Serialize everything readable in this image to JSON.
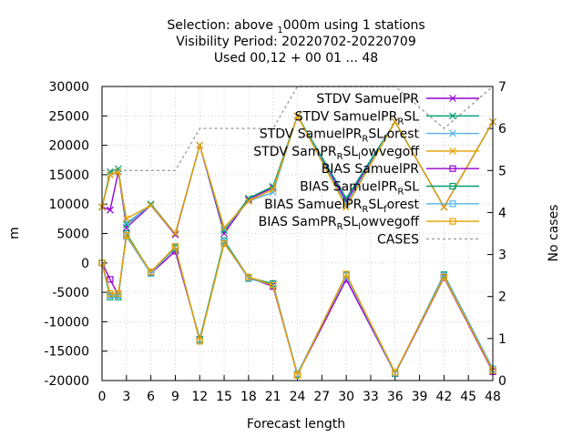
{
  "chart_data": {
    "type": "line",
    "title": [
      {
        "parts": [
          {
            "t": "Selection: above "
          },
          {
            "t": "1",
            "sub": true
          },
          {
            "t": "000m using     1 stations"
          }
        ]
      },
      {
        "parts": [
          {
            "t": "Visibility   Period: 20220702-20220709"
          }
        ]
      },
      {
        "parts": [
          {
            "t": "Used  00,12 + 00 01 ... 48"
          }
        ]
      }
    ],
    "xlabel": "Forecast length",
    "ylabel": "m",
    "y2label": "No cases",
    "xlim": [
      0,
      48
    ],
    "ylim": [
      -20000,
      30000
    ],
    "y2lim": [
      0,
      7
    ],
    "xticks": [
      "0",
      "3",
      "6",
      "9",
      "12",
      "15",
      "18",
      "21",
      "24",
      "27",
      "30",
      "33",
      "36",
      "39",
      "42",
      "45",
      "48"
    ],
    "yticks": [
      "-20000",
      "-15000",
      "-10000",
      "-5000",
      "0",
      "5000",
      "10000",
      "15000",
      "20000",
      "25000",
      "30000"
    ],
    "y2ticks": [
      "0",
      "1",
      "2",
      "3",
      "4",
      "5",
      "6",
      "7"
    ],
    "grid": true,
    "legend_position": "top-right",
    "x": [
      0,
      1,
      2,
      3,
      6,
      9,
      12,
      15,
      18,
      21,
      24,
      30,
      36,
      42,
      48
    ],
    "series": [
      {
        "label_parts": [
          {
            "t": "STDV SamuelPR"
          }
        ],
        "color": "#9400d3",
        "marker": "x",
        "axis": "y",
        "values": [
          9500,
          9000,
          15500,
          6000,
          9800,
          4800,
          20000,
          5000,
          10800,
          12800,
          25000,
          10500,
          24000,
          9500,
          24000
        ]
      },
      {
        "label_parts": [
          {
            "t": "STDV SamuelPR"
          },
          {
            "t": "R",
            "sub": true
          },
          {
            "t": "SL"
          }
        ],
        "color": "#009e73",
        "marker": "x",
        "axis": "y",
        "values": [
          9500,
          15500,
          16000,
          6500,
          10000,
          5000,
          20000,
          5500,
          11000,
          13000,
          25000,
          11000,
          24000,
          9500,
          24000
        ]
      },
      {
        "label_parts": [
          {
            "t": "STDV SamuelPR"
          },
          {
            "t": "R",
            "sub": true
          },
          {
            "t": "SL"
          },
          {
            "t": "f",
            "sub": true
          },
          {
            "t": "orest"
          }
        ],
        "color": "#56b4e9",
        "marker": "x",
        "axis": "y",
        "values": [
          9500,
          15000,
          15500,
          6800,
          9800,
          5000,
          20000,
          5800,
          10500,
          12000,
          25000,
          10000,
          24000,
          9500,
          24000
        ]
      },
      {
        "label_parts": [
          {
            "t": "STDV SamPR"
          },
          {
            "t": "R",
            "sub": true
          },
          {
            "t": "SL"
          },
          {
            "t": "l",
            "sub": true
          },
          {
            "t": "owvegoff"
          }
        ],
        "color": "#e69f00",
        "marker": "x",
        "axis": "y",
        "values": [
          9500,
          15000,
          15500,
          7500,
          9800,
          5000,
          20000,
          6000,
          10500,
          12500,
          25000,
          9500,
          24000,
          9500,
          24000
        ]
      },
      {
        "label_parts": [
          {
            "t": "BIAS SamuelPR"
          }
        ],
        "color": "#9400d3",
        "marker": "square",
        "axis": "y",
        "values": [
          0,
          -2800,
          -5500,
          5000,
          -1800,
          2000,
          -13000,
          3500,
          -2500,
          -4000,
          -19000,
          -2800,
          -18800,
          -2500,
          -18500
        ]
      },
      {
        "label_parts": [
          {
            "t": "BIAS SamuelPR"
          },
          {
            "t": "R",
            "sub": true
          },
          {
            "t": "SL"
          }
        ],
        "color": "#009e73",
        "marker": "square",
        "axis": "y",
        "values": [
          0,
          -5800,
          -5800,
          5000,
          -1600,
          2500,
          -13000,
          3800,
          -2500,
          -3500,
          -19000,
          -2000,
          -18800,
          -2000,
          -18000
        ]
      },
      {
        "label_parts": [
          {
            "t": "BIAS SamuelPR"
          },
          {
            "t": "R",
            "sub": true
          },
          {
            "t": "SL"
          },
          {
            "t": "f",
            "sub": true
          },
          {
            "t": "orest"
          }
        ],
        "color": "#56b4e9",
        "marker": "square",
        "axis": "y",
        "values": [
          0,
          -5500,
          -5500,
          4500,
          -1800,
          2700,
          -13300,
          3500,
          -2700,
          -3700,
          -18800,
          -2200,
          -18700,
          -2200,
          -18000
        ]
      },
      {
        "label_parts": [
          {
            "t": "BIAS SamPR"
          },
          {
            "t": "R",
            "sub": true
          },
          {
            "t": "SL"
          },
          {
            "t": "l",
            "sub": true
          },
          {
            "t": "owvegoff"
          }
        ],
        "color": "#e69f00",
        "marker": "square",
        "axis": "y",
        "values": [
          0,
          -5200,
          -5200,
          4700,
          -1500,
          2800,
          -13300,
          3300,
          -2400,
          -3800,
          -19100,
          -1900,
          -18600,
          -2400,
          -18300
        ]
      },
      {
        "label_parts": [
          {
            "t": "CASES"
          }
        ],
        "color": "#a0a0a0",
        "marker": "none",
        "dashed": true,
        "axis": "y2",
        "values": [
          5,
          5,
          5,
          5,
          5,
          5,
          6,
          6,
          6,
          6,
          7,
          7,
          7,
          6,
          7
        ]
      }
    ]
  }
}
